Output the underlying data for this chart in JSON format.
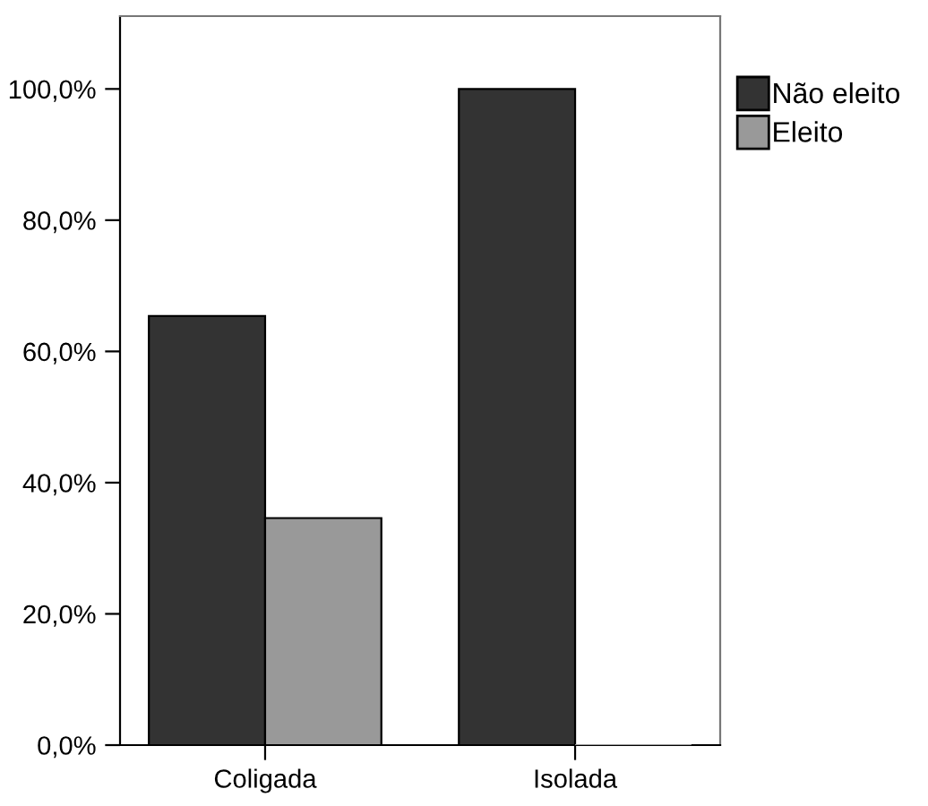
{
  "chart_data": {
    "type": "bar",
    "categories": [
      "Coligada",
      "Isolada"
    ],
    "series": [
      {
        "name": "Não eleito",
        "color": "#333333",
        "values": [
          65.4,
          100.0
        ]
      },
      {
        "name": "Eleito",
        "color": "#999999",
        "values": [
          34.6,
          0.0
        ]
      }
    ],
    "ylim": [
      0,
      111.1
    ],
    "yticks": [
      {
        "value": 0,
        "label": "0,0%"
      },
      {
        "value": 20,
        "label": "20,0%"
      },
      {
        "value": 40,
        "label": "40,0%"
      },
      {
        "value": 60,
        "label": "60,0%"
      },
      {
        "value": 80,
        "label": "80,0%"
      },
      {
        "value": 100,
        "label": "100,0%"
      }
    ],
    "grid": false,
    "legend": "top right"
  }
}
